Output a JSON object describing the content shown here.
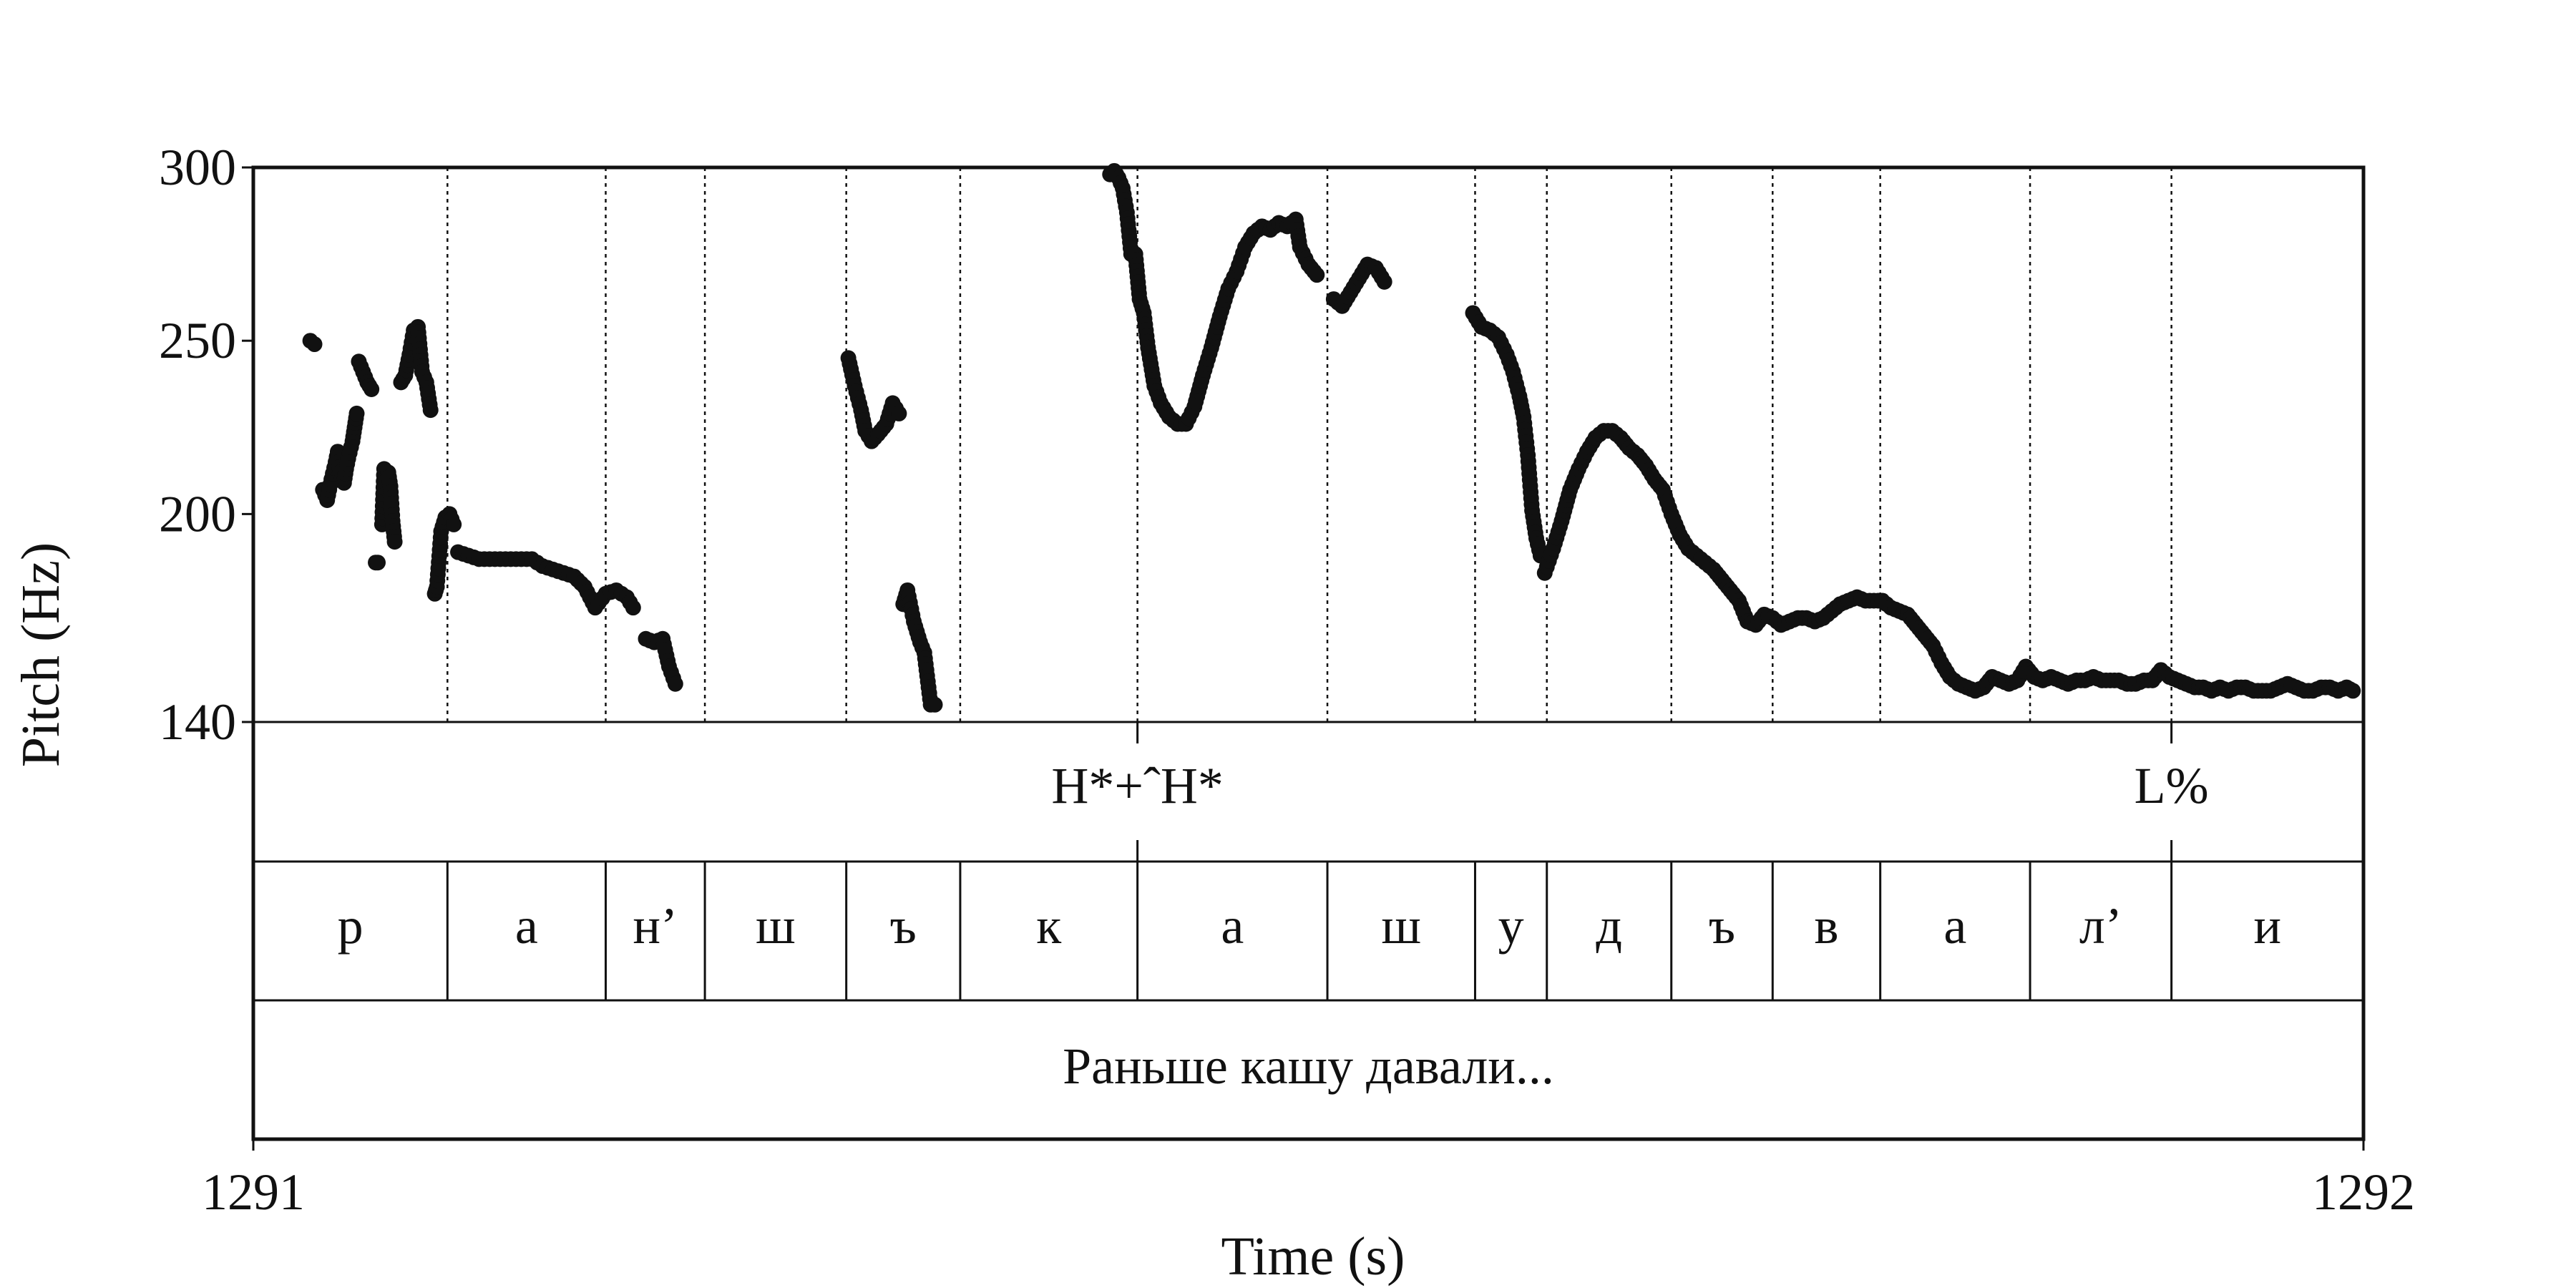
{
  "colors": {
    "ink": "#111111",
    "background": "#ffffff"
  },
  "chart_data": {
    "type": "scatter",
    "xlabel": "Time (s)",
    "ylabel": "Pitch (Hz)",
    "xlim": [
      1291,
      1292
    ],
    "ylim": [
      140,
      300
    ],
    "x_tick_labels": [
      "1291",
      "1292"
    ],
    "y_tick_labels": [
      "300",
      "250",
      "200",
      "140"
    ],
    "y_ticks": [
      300,
      250,
      200,
      140
    ],
    "grid": false,
    "segments": [
      {
        "label": "р",
        "start": 1291.0,
        "end": 1291.092
      },
      {
        "label": "а",
        "start": 1291.092,
        "end": 1291.167
      },
      {
        "label": "н’",
        "start": 1291.167,
        "end": 1291.214
      },
      {
        "label": "ш",
        "start": 1291.214,
        "end": 1291.281
      },
      {
        "label": "ъ",
        "start": 1291.281,
        "end": 1291.335
      },
      {
        "label": "к",
        "start": 1291.335,
        "end": 1291.419
      },
      {
        "label": "а",
        "start": 1291.419,
        "end": 1291.509
      },
      {
        "label": "ш",
        "start": 1291.509,
        "end": 1291.579
      },
      {
        "label": "у",
        "start": 1291.579,
        "end": 1291.613
      },
      {
        "label": "д",
        "start": 1291.613,
        "end": 1291.672
      },
      {
        "label": "ъ",
        "start": 1291.672,
        "end": 1291.72
      },
      {
        "label": "в",
        "start": 1291.72,
        "end": 1291.771
      },
      {
        "label": "а",
        "start": 1291.771,
        "end": 1291.842
      },
      {
        "label": "л’",
        "start": 1291.842,
        "end": 1291.909
      },
      {
        "label": "и",
        "start": 1291.909,
        "end": 1292.0
      }
    ],
    "tones": [
      {
        "label": "H*+ˆH*",
        "time": 1291.419
      },
      {
        "label": "L%",
        "time": 1291.909
      }
    ],
    "sentence": "Раньше кашу давали...",
    "pitch_runs": [
      [
        [
          1291.027,
          250
        ],
        [
          1291.029,
          249
        ]
      ],
      [
        [
          1291.033,
          207
        ],
        [
          1291.035,
          204
        ],
        [
          1291.037,
          210
        ],
        [
          1291.039,
          215
        ],
        [
          1291.04,
          218
        ],
        [
          1291.041,
          212
        ],
        [
          1291.043,
          209
        ],
        [
          1291.044,
          213
        ],
        [
          1291.045,
          216
        ],
        [
          1291.047,
          221
        ],
        [
          1291.048,
          225
        ],
        [
          1291.049,
          229
        ]
      ],
      [
        [
          1291.05,
          244
        ],
        [
          1291.052,
          241
        ],
        [
          1291.054,
          238
        ],
        [
          1291.056,
          236
        ]
      ],
      [
        [
          1291.058,
          186
        ],
        [
          1291.059,
          186
        ]
      ],
      [
        [
          1291.061,
          197
        ],
        [
          1291.062,
          213
        ],
        [
          1291.064,
          212
        ],
        [
          1291.065,
          208
        ],
        [
          1291.066,
          198
        ],
        [
          1291.067,
          192
        ]
      ],
      [
        [
          1291.07,
          238
        ],
        [
          1291.072,
          240
        ],
        [
          1291.074,
          246
        ],
        [
          1291.076,
          253
        ],
        [
          1291.078,
          254
        ],
        [
          1291.08,
          241
        ],
        [
          1291.082,
          238
        ],
        [
          1291.084,
          230
        ]
      ],
      [
        [
          1291.086,
          177
        ],
        [
          1291.087,
          179
        ],
        [
          1291.089,
          195
        ],
        [
          1291.091,
          199
        ],
        [
          1291.093,
          200
        ],
        [
          1291.095,
          197
        ]
      ],
      [
        [
          1291.097,
          189
        ],
        [
          1291.102,
          188
        ],
        [
          1291.107,
          187
        ],
        [
          1291.112,
          187
        ],
        [
          1291.117,
          187
        ],
        [
          1291.122,
          187
        ],
        [
          1291.127,
          187
        ],
        [
          1291.132,
          187
        ],
        [
          1291.137,
          185
        ],
        [
          1291.142,
          184
        ],
        [
          1291.147,
          183
        ],
        [
          1291.152,
          182
        ],
        [
          1291.157,
          179
        ],
        [
          1291.162,
          173
        ],
        [
          1291.167,
          177
        ],
        [
          1291.172,
          178
        ],
        [
          1291.177,
          176
        ],
        [
          1291.18,
          173
        ]
      ],
      [
        [
          1291.186,
          164
        ],
        [
          1291.19,
          163
        ],
        [
          1291.194,
          164
        ],
        [
          1291.197,
          156
        ],
        [
          1291.2,
          151
        ]
      ],
      [
        [
          1291.282,
          245
        ],
        [
          1291.285,
          237
        ],
        [
          1291.288,
          230
        ],
        [
          1291.29,
          224
        ],
        [
          1291.293,
          221
        ],
        [
          1291.296,
          223
        ],
        [
          1291.3,
          226
        ],
        [
          1291.303,
          232
        ],
        [
          1291.306,
          229
        ]
      ],
      [
        [
          1291.308,
          174
        ],
        [
          1291.31,
          178
        ],
        [
          1291.313,
          169
        ],
        [
          1291.316,
          163
        ],
        [
          1291.318,
          160
        ],
        [
          1291.321,
          145
        ],
        [
          1291.323,
          145
        ]
      ],
      [
        [
          1291.406,
          298
        ],
        [
          1291.408,
          299
        ],
        [
          1291.41,
          297
        ],
        [
          1291.412,
          294
        ],
        [
          1291.414,
          287
        ],
        [
          1291.416,
          275
        ],
        [
          1291.418,
          275
        ],
        [
          1291.42,
          262
        ],
        [
          1291.422,
          258
        ],
        [
          1291.424,
          248
        ],
        [
          1291.427,
          237
        ],
        [
          1291.43,
          232
        ],
        [
          1291.434,
          228
        ],
        [
          1291.438,
          226
        ],
        [
          1291.442,
          226
        ],
        [
          1291.446,
          231
        ],
        [
          1291.45,
          240
        ],
        [
          1291.454,
          248
        ],
        [
          1291.458,
          257
        ],
        [
          1291.462,
          265
        ],
        [
          1291.466,
          270
        ],
        [
          1291.47,
          277
        ],
        [
          1291.474,
          281
        ],
        [
          1291.478,
          283
        ],
        [
          1291.482,
          282
        ],
        [
          1291.486,
          284
        ],
        [
          1291.49,
          283
        ],
        [
          1291.494,
          285
        ],
        [
          1291.496,
          277
        ],
        [
          1291.5,
          272
        ],
        [
          1291.504,
          269
        ]
      ],
      [
        [
          1291.512,
          262
        ],
        [
          1291.516,
          260
        ],
        [
          1291.52,
          264
        ],
        [
          1291.524,
          268
        ],
        [
          1291.528,
          272
        ],
        [
          1291.532,
          271
        ],
        [
          1291.536,
          267
        ]
      ],
      [
        [
          1291.578,
          258
        ],
        [
          1291.582,
          254
        ],
        [
          1291.586,
          253
        ],
        [
          1291.59,
          251
        ],
        [
          1291.594,
          246
        ],
        [
          1291.597,
          241
        ],
        [
          1291.6,
          234
        ],
        [
          1291.602,
          228
        ],
        [
          1291.604,
          217
        ],
        [
          1291.606,
          201
        ],
        [
          1291.608,
          193
        ],
        [
          1291.61,
          188
        ]
      ],
      [
        [
          1291.612,
          183
        ],
        [
          1291.616,
          190
        ],
        [
          1291.62,
          198
        ],
        [
          1291.624,
          207
        ],
        [
          1291.628,
          213
        ],
        [
          1291.632,
          218
        ],
        [
          1291.636,
          222
        ],
        [
          1291.64,
          224
        ],
        [
          1291.644,
          224
        ],
        [
          1291.648,
          222
        ],
        [
          1291.652,
          219
        ],
        [
          1291.656,
          217
        ],
        [
          1291.66,
          214
        ],
        [
          1291.664,
          210
        ],
        [
          1291.668,
          207
        ],
        [
          1291.672,
          200
        ],
        [
          1291.676,
          194
        ],
        [
          1291.68,
          190
        ],
        [
          1291.684,
          188
        ],
        [
          1291.688,
          186
        ],
        [
          1291.692,
          184
        ],
        [
          1291.696,
          181
        ],
        [
          1291.7,
          178
        ],
        [
          1291.704,
          175
        ],
        [
          1291.708,
          169
        ],
        [
          1291.712,
          168
        ],
        [
          1291.716,
          171
        ],
        [
          1291.72,
          170
        ],
        [
          1291.724,
          168
        ],
        [
          1291.728,
          169
        ],
        [
          1291.732,
          170
        ],
        [
          1291.736,
          170
        ],
        [
          1291.74,
          169
        ],
        [
          1291.744,
          170
        ],
        [
          1291.748,
          172
        ],
        [
          1291.752,
          174
        ],
        [
          1291.756,
          175
        ],
        [
          1291.76,
          176
        ],
        [
          1291.764,
          175
        ],
        [
          1291.768,
          175
        ],
        [
          1291.772,
          175
        ],
        [
          1291.776,
          173
        ],
        [
          1291.78,
          172
        ],
        [
          1291.784,
          171
        ],
        [
          1291.788,
          168
        ],
        [
          1291.792,
          165
        ],
        [
          1291.796,
          162
        ],
        [
          1291.8,
          157
        ],
        [
          1291.804,
          153
        ],
        [
          1291.808,
          151
        ],
        [
          1291.812,
          150
        ],
        [
          1291.816,
          149
        ],
        [
          1291.82,
          150
        ],
        [
          1291.824,
          153
        ],
        [
          1291.828,
          152
        ],
        [
          1291.832,
          151
        ],
        [
          1291.836,
          152
        ],
        [
          1291.84,
          156
        ],
        [
          1291.844,
          153
        ],
        [
          1291.848,
          152
        ],
        [
          1291.852,
          153
        ],
        [
          1291.856,
          152
        ],
        [
          1291.86,
          151
        ],
        [
          1291.864,
          152
        ],
        [
          1291.868,
          152
        ],
        [
          1291.872,
          153
        ],
        [
          1291.876,
          152
        ],
        [
          1291.88,
          152
        ],
        [
          1291.884,
          152
        ],
        [
          1291.888,
          151
        ],
        [
          1291.892,
          151
        ],
        [
          1291.896,
          152
        ],
        [
          1291.9,
          152
        ],
        [
          1291.904,
          155
        ],
        [
          1291.908,
          153
        ],
        [
          1291.912,
          152
        ],
        [
          1291.916,
          151
        ],
        [
          1291.92,
          150
        ],
        [
          1291.924,
          150
        ],
        [
          1291.928,
          149
        ],
        [
          1291.932,
          150
        ],
        [
          1291.936,
          149
        ],
        [
          1291.94,
          150
        ],
        [
          1291.944,
          150
        ],
        [
          1291.948,
          149
        ],
        [
          1291.952,
          149
        ],
        [
          1291.956,
          149
        ],
        [
          1291.96,
          150
        ],
        [
          1291.964,
          151
        ],
        [
          1291.968,
          150
        ],
        [
          1291.972,
          149
        ],
        [
          1291.976,
          149
        ],
        [
          1291.98,
          150
        ],
        [
          1291.984,
          150
        ],
        [
          1291.988,
          149
        ],
        [
          1291.992,
          150
        ],
        [
          1291.995,
          149
        ]
      ]
    ]
  }
}
